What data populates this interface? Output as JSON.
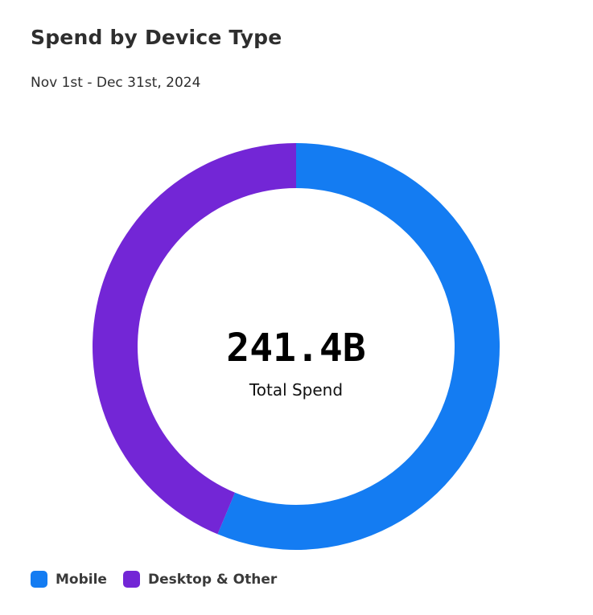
{
  "chart_data": {
    "type": "pie",
    "donut": true,
    "title": "Spend by Device Type",
    "subtitle": "Nov 1st - Dec 31st, 2024",
    "center_value": "241.4B",
    "center_label": "Total Spend",
    "series": [
      {
        "name": "Mobile",
        "value": 56.3,
        "color": "#147cf2"
      },
      {
        "name": "Desktop & Other",
        "value": 43.7,
        "color": "#7326d6"
      }
    ],
    "legend_position": "bottom-left"
  }
}
